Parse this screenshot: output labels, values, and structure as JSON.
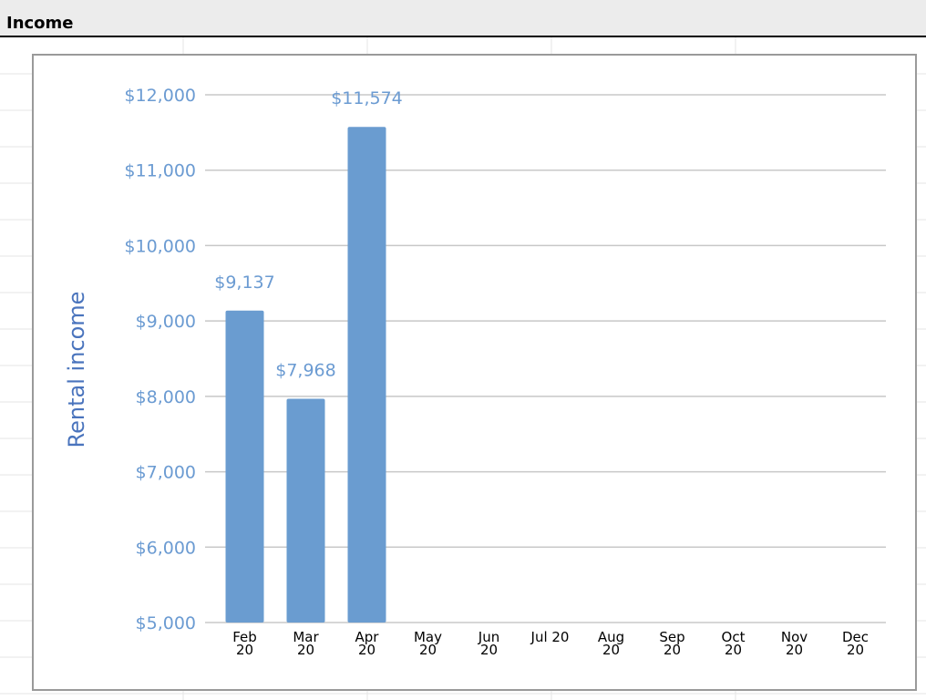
{
  "sheet": {
    "title": "Income"
  },
  "colors": {
    "bar": "#6a9cd0",
    "axis_text": "#6b9bd2",
    "ylabel": "#4a74bd",
    "grid": "#c8c8c8"
  },
  "chart_data": {
    "type": "bar",
    "title": "",
    "xlabel": "",
    "ylabel": "Rental income",
    "ylim": [
      5000,
      12000
    ],
    "yticks": [
      "$5,000",
      "$6,000",
      "$7,000",
      "$8,000",
      "$9,000",
      "$10,000",
      "$11,000",
      "$12,000"
    ],
    "categories": [
      [
        "Feb",
        "20"
      ],
      [
        "Mar",
        "20"
      ],
      [
        "Apr",
        "20"
      ],
      [
        "May",
        "20"
      ],
      [
        "Jun",
        "20"
      ],
      [
        "Jul 20"
      ],
      [
        "Aug",
        "20"
      ],
      [
        "Sep",
        "20"
      ],
      [
        "Oct",
        "20"
      ],
      [
        "Nov",
        "20"
      ],
      [
        "Dec",
        "20"
      ]
    ],
    "values": [
      9137,
      7968,
      11574,
      null,
      null,
      null,
      null,
      null,
      null,
      null,
      null
    ],
    "data_labels": [
      "$9,137",
      "$7,968",
      "$11,574",
      "",
      "",
      "",
      "",
      "",
      "",
      "",
      ""
    ],
    "grid": true
  }
}
